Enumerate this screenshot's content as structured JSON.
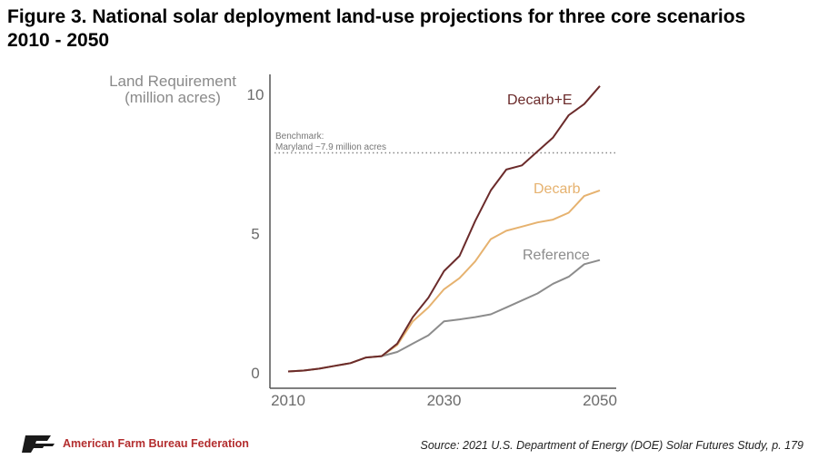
{
  "figure": {
    "title_line1": "Figure 3. National solar deployment land-use projections for three core scenarios",
    "title_line2": "2010 - 2050"
  },
  "footer": {
    "org_name": "American Farm Bureau Federation",
    "source": "Source: 2021 U.S. Department of Energy (DOE) Solar Futures Study, p. 179",
    "brand_color": "#b32d2e",
    "logo_icon": "afbf-logo-icon"
  },
  "chart_data": {
    "type": "line",
    "ylabel_line1": "Land Requirement",
    "ylabel_line2": "(million acres)",
    "xlim": [
      2010,
      2050
    ],
    "ylim": [
      0,
      10.5
    ],
    "x_ticks": [
      "2010",
      "2030",
      "2050"
    ],
    "y_ticks": [
      "0",
      "5",
      "10"
    ],
    "grid": false,
    "benchmark": {
      "label_line1": "Benchmark:",
      "label_line2": "Maryland ~7.9 million acres",
      "value": 7.9
    },
    "series": [
      {
        "name": "Reference",
        "color": "#8c8c8c",
        "x": [
          2010,
          2012,
          2014,
          2016,
          2018,
          2020,
          2022,
          2024,
          2026,
          2028,
          2030,
          2032,
          2034,
          2036,
          2038,
          2040,
          2042,
          2044,
          2046,
          2048,
          2050
        ],
        "y": [
          0.05,
          0.08,
          0.15,
          0.25,
          0.35,
          0.55,
          0.6,
          0.75,
          1.05,
          1.35,
          1.85,
          1.92,
          2.0,
          2.1,
          2.35,
          2.6,
          2.85,
          3.2,
          3.45,
          3.9,
          4.05
        ]
      },
      {
        "name": "Decarb",
        "color": "#e6b26f",
        "x": [
          2010,
          2012,
          2014,
          2016,
          2018,
          2020,
          2022,
          2024,
          2026,
          2028,
          2030,
          2032,
          2034,
          2036,
          2038,
          2040,
          2042,
          2044,
          2046,
          2048,
          2050
        ],
        "y": [
          0.05,
          0.08,
          0.15,
          0.25,
          0.35,
          0.55,
          0.6,
          1.0,
          1.85,
          2.35,
          3.0,
          3.4,
          4.0,
          4.8,
          5.1,
          5.25,
          5.4,
          5.5,
          5.75,
          6.35,
          6.55
        ]
      },
      {
        "name": "Decarb+E",
        "color": "#6b2b2b",
        "x": [
          2010,
          2012,
          2014,
          2016,
          2018,
          2020,
          2022,
          2024,
          2026,
          2028,
          2030,
          2032,
          2034,
          2036,
          2038,
          2040,
          2042,
          2044,
          2046,
          2048,
          2050
        ],
        "y": [
          0.05,
          0.08,
          0.15,
          0.25,
          0.35,
          0.55,
          0.6,
          1.05,
          2.0,
          2.7,
          3.65,
          4.2,
          5.45,
          6.55,
          7.3,
          7.45,
          7.95,
          8.45,
          9.25,
          9.65,
          10.3
        ]
      }
    ]
  }
}
